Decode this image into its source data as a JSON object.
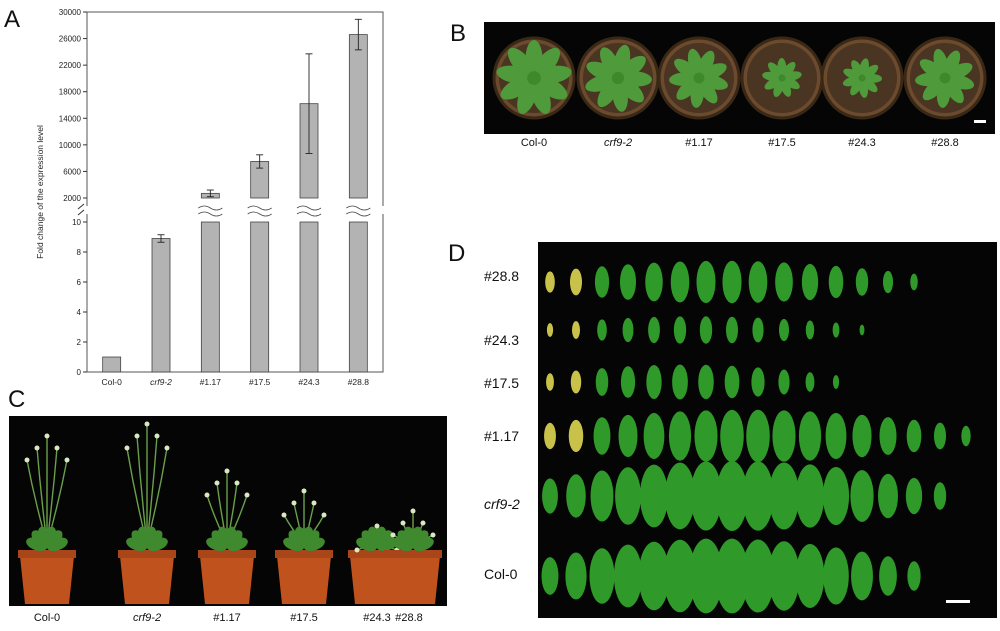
{
  "panels": {
    "a": {
      "letter": "A"
    },
    "b": {
      "letter": "B",
      "labels": [
        "Col-0",
        "crf9-2",
        "#1.17",
        "#17.5",
        "#24.3",
        "#28.8"
      ]
    },
    "c": {
      "letter": "C",
      "labels": [
        "Col-0",
        "crf9-2",
        "#1.17",
        "#17.5",
        "#24.3",
        "#28.8"
      ]
    },
    "d": {
      "letter": "D",
      "rows": [
        "#28.8",
        "#24.3",
        "#17.5",
        "#1.17",
        "crf9-2",
        "Col-0"
      ]
    }
  },
  "chart_data": {
    "type": "bar",
    "title": "",
    "xlabel": "",
    "ylabel": "Fold change of the expression level",
    "categories": [
      "Col-0",
      "crf9-2",
      "#1.17",
      "#17.5",
      "#24.3",
      "#28.8"
    ],
    "values": [
      1,
      8.9,
      2700,
      7500,
      16200,
      26600
    ],
    "errors": [
      0,
      0.25,
      500,
      1000,
      7500,
      2300
    ],
    "broken_axis": true,
    "lower_range": [
      0,
      10
    ],
    "upper_range": [
      2000,
      30000
    ],
    "lower_ticks": [
      "0",
      "2",
      "4",
      "6",
      "8",
      "10"
    ],
    "upper_ticks": [
      "2000",
      "6000",
      "10000",
      "14000",
      "18000",
      "22000",
      "26000",
      "30000"
    ],
    "bar_color": "#b3b3b3"
  }
}
